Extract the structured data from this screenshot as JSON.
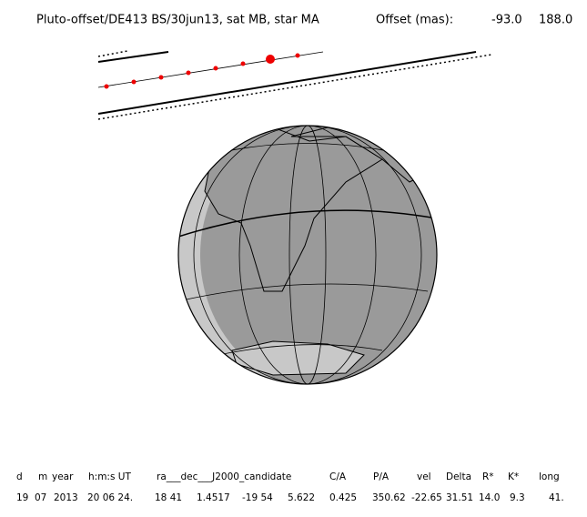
{
  "header": {
    "title": "Pluto-offset/DE413 BS/30jun13, sat MB, star MA",
    "offset_label": "Offset (mas):",
    "offset_values": [
      "-93.0",
      "188.0"
    ]
  },
  "table": {
    "headers": [
      "d",
      "m",
      "year",
      "h:m:s UT",
      "ra___dec___J2000_candidate",
      "C/A",
      "P/A",
      "vel",
      "Delta",
      "R*",
      "K*",
      "long"
    ],
    "row": [
      "19",
      "07",
      "2013",
      "20 06 24.",
      "18 41",
      "1.4517",
      "-19 54",
      "5.622",
      "0.425",
      "350.62",
      "-22.65",
      "31.51",
      "14.0",
      "9.3",
      "41."
    ]
  }
}
